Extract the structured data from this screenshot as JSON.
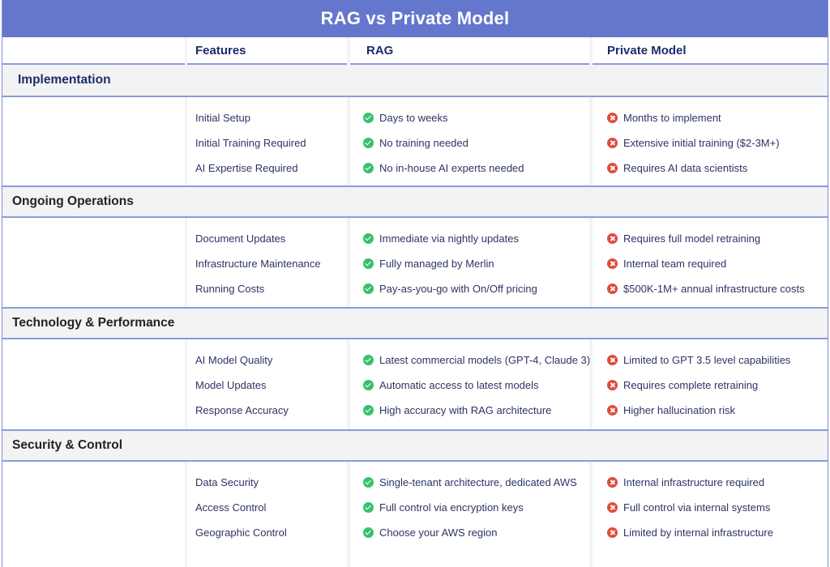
{
  "title": "RAG vs Private Model",
  "columns": {
    "features": "Features",
    "rag": "RAG",
    "private": "Private Model"
  },
  "colors": {
    "header_bg": "#6477cc",
    "border": "#8c9bdb",
    "check": "#35c26a",
    "cross": "#e04b3c",
    "text": "#2d3466"
  },
  "icons": {
    "rag": "check-circle-icon",
    "private": "x-circle-icon"
  },
  "sections": [
    {
      "name": "Implementation",
      "rows": [
        {
          "feature": "Initial Setup",
          "rag": "Days to weeks",
          "private": "Months to implement"
        },
        {
          "feature": "Initial Training Required",
          "rag": "No training needed",
          "private": "Extensive initial training ($2-3M+)"
        },
        {
          "feature": "AI Expertise Required",
          "rag": "No in-house AI experts needed",
          "private": "Requires AI data scientists"
        }
      ]
    },
    {
      "name": "Ongoing Operations",
      "rows": [
        {
          "feature": "Document Updates",
          "rag": "Immediate via nightly updates",
          "private": "Requires full model retraining"
        },
        {
          "feature": "Infrastructure Maintenance",
          "rag": "Fully managed by Merlin",
          "private": "Internal team required"
        },
        {
          "feature": "Running Costs",
          "rag": "Pay-as-you-go with On/Off pricing",
          "private": "$500K-1M+ annual infrastructure costs"
        }
      ]
    },
    {
      "name": "Technology & Performance",
      "rows": [
        {
          "feature": "AI Model Quality",
          "rag": "Latest commercial models (GPT-4, Claude 3)",
          "private": "Limited to GPT 3.5 level capabilities"
        },
        {
          "feature": "Model Updates",
          "rag": "Automatic access to latest models",
          "private": "Requires complete retraining"
        },
        {
          "feature": "Response Accuracy",
          "rag": "High accuracy with RAG architecture",
          "private": "Higher hallucination risk"
        }
      ]
    },
    {
      "name": "Security & Control",
      "rows": [
        {
          "feature": "Data Security",
          "rag": "Single-tenant architecture, dedicated AWS",
          "private": "Internal infrastructure required"
        },
        {
          "feature": "Access Control",
          "rag": "Full control via encryption keys",
          "private": "Full control via internal systems"
        },
        {
          "feature": "Geographic Control",
          "rag": "Choose your AWS region",
          "private": "Limited by internal infrastructure"
        }
      ]
    }
  ]
}
